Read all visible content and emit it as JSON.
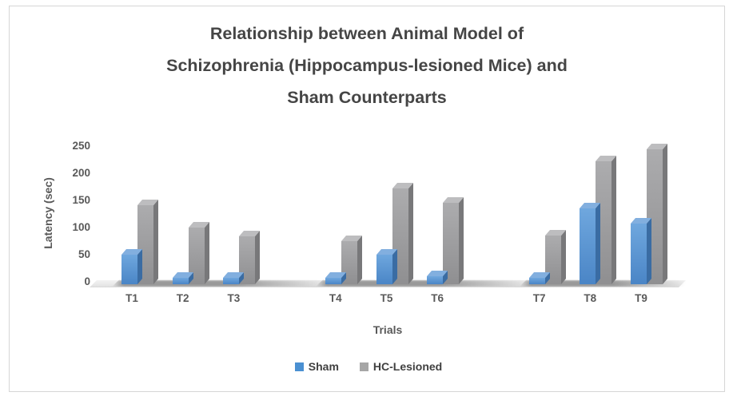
{
  "title": {
    "lines": [
      "Relationship between Animal Model of",
      "Schizophrenia (Hippocampus-lesioned Mice) and",
      "Sham Counterparts"
    ]
  },
  "chart_data": {
    "type": "bar",
    "style": "3d-clustered-column",
    "title": "Relationship between Animal Model of Schizophrenia (Hippocampus-lesioned Mice) and Sham Counterparts",
    "categories": [
      "T1",
      "T2",
      "T3",
      "T4",
      "T5",
      "T6",
      "T7",
      "T8",
      "T9"
    ],
    "cluster_groups": [
      [
        "T1",
        "T2",
        "T3"
      ],
      [
        "T4",
        "T5",
        "T6"
      ],
      [
        "T7",
        "T8",
        "T9"
      ]
    ],
    "series": [
      {
        "name": "Sham",
        "color": "#4A90D2",
        "values": [
          55,
          12,
          12,
          12,
          55,
          15,
          12,
          140,
          112
        ],
        "face_colors": {
          "front_top": "#6FA7DE",
          "front_bottom": "#4A85C6",
          "top": "#82AFDF",
          "side": "#3A6CA3"
        }
      },
      {
        "name": "HC-Lesioned",
        "color": "#A6A6A6",
        "values": [
          145,
          105,
          88,
          80,
          176,
          150,
          90,
          227,
          248
        ],
        "face_colors": {
          "front_top": "#ACACAE",
          "front_bottom": "#8F8F91",
          "top": "#BDBDBF",
          "side": "#78787A"
        }
      }
    ],
    "xlabel": "Trials",
    "ylabel": "Latency (sec)",
    "ylim": [
      0,
      250
    ],
    "ytick_step": 50,
    "yticks": [
      "0",
      "50",
      "100",
      "150",
      "200",
      "250"
    ],
    "grid": false,
    "legend_position": "bottom"
  },
  "colors": {
    "title_text": "#454545",
    "axis_text": "#595959",
    "legend_text": "#404040",
    "frame_border": "#d6d6d6"
  }
}
